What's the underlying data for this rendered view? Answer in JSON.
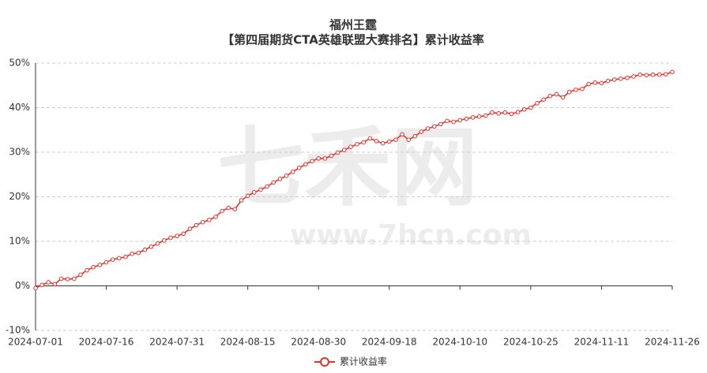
{
  "chart_data": {
    "type": "line",
    "title": "福州王霆",
    "subtitle": "【第四届期货CTA英雄联盟大赛排名】累计收益率",
    "watermark": "七禾网",
    "watermark_url": "www.7hcn.com",
    "categories": [
      "2024-07-01",
      null,
      null,
      null,
      null,
      null,
      null,
      null,
      null,
      null,
      null,
      "2024-07-16",
      null,
      null,
      null,
      null,
      null,
      null,
      null,
      null,
      null,
      null,
      "2024-07-31",
      null,
      null,
      null,
      null,
      null,
      null,
      null,
      null,
      null,
      null,
      "2024-08-15",
      null,
      null,
      null,
      null,
      null,
      null,
      null,
      null,
      null,
      null,
      "2024-08-30",
      null,
      null,
      null,
      null,
      null,
      null,
      null,
      null,
      null,
      null,
      "2024-09-18",
      null,
      null,
      null,
      null,
      null,
      null,
      null,
      null,
      null,
      null,
      "2024-10-10",
      null,
      null,
      null,
      null,
      null,
      null,
      null,
      null,
      null,
      null,
      "2024-10-25",
      null,
      null,
      null,
      null,
      null,
      null,
      null,
      null,
      null,
      null,
      "2024-11-11",
      null,
      null,
      null,
      null,
      null,
      null,
      null,
      null,
      null,
      null,
      "2024-11-26"
    ],
    "series": [
      {
        "name": "累计收益率",
        "color": "#e8302a",
        "values": [
          -0.5,
          0.2,
          0.8,
          0.4,
          1.6,
          1.5,
          1.6,
          2.5,
          3.5,
          4.2,
          4.7,
          5.3,
          5.9,
          6.2,
          6.5,
          7.2,
          7.4,
          8.1,
          8.8,
          9.5,
          10.2,
          10.8,
          11.2,
          11.7,
          12.8,
          13.6,
          14.3,
          14.8,
          15.5,
          16.8,
          17.5,
          17.2,
          19.2,
          20.2,
          21.0,
          21.6,
          22.3,
          23.2,
          24.0,
          24.7,
          25.6,
          26.5,
          27.3,
          28.0,
          28.6,
          28.6,
          29.2,
          29.9,
          30.5,
          31.2,
          31.8,
          32.2,
          33.1,
          32.5,
          32.0,
          32.4,
          32.8,
          34.0,
          32.8,
          33.6,
          34.6,
          35.3,
          35.8,
          36.3,
          37.0,
          36.8,
          37.2,
          37.5,
          37.8,
          38.0,
          38.2,
          38.9,
          38.7,
          38.9,
          38.6,
          39.0,
          39.6,
          40.0,
          41.0,
          41.8,
          42.6,
          43.0,
          42.3,
          43.5,
          44.0,
          44.2,
          45.3,
          45.6,
          45.5,
          46.0,
          46.3,
          46.5,
          46.7,
          47.0,
          47.4,
          47.3,
          47.4,
          47.4,
          47.5,
          48.0
        ]
      }
    ],
    "ylim": [
      -10,
      50
    ],
    "yticks": [
      {
        "value": -10,
        "label": "-10%"
      },
      {
        "value": 0,
        "label": "0%"
      },
      {
        "value": 10,
        "label": "10%"
      },
      {
        "value": 20,
        "label": "20%"
      },
      {
        "value": 30,
        "label": "30%"
      },
      {
        "value": 40,
        "label": "40%"
      },
      {
        "value": 50,
        "label": "50%"
      }
    ],
    "grid": true,
    "legend": "bottom"
  }
}
